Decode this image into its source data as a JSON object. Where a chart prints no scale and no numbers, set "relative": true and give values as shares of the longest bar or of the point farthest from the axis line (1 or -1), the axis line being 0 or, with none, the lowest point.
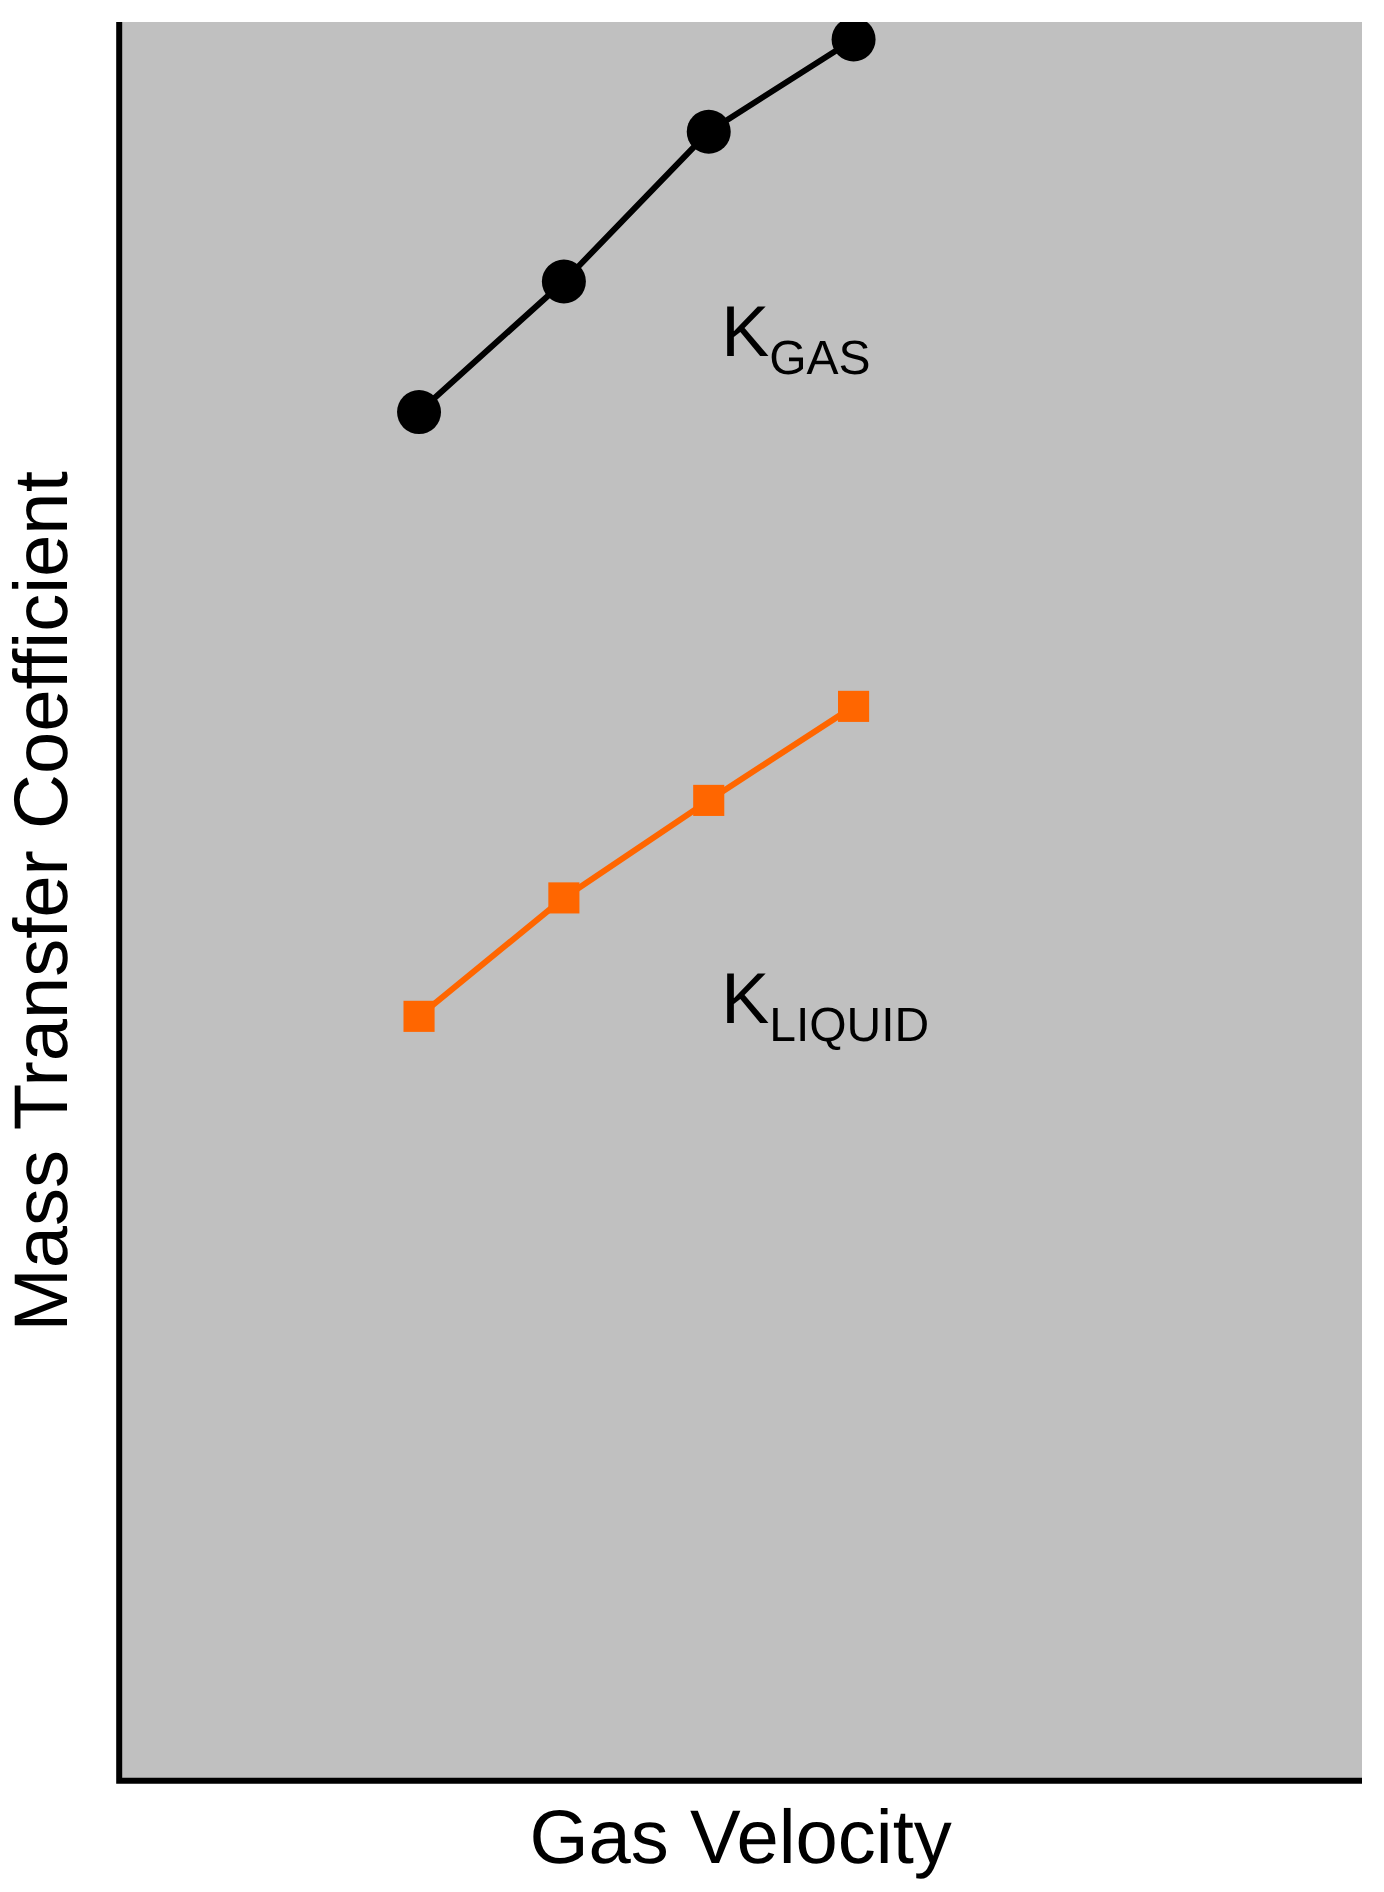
{
  "chart_data": {
    "type": "line",
    "relative": true,
    "xlabel": "Gas Velocity",
    "ylabel": "Mass Transfer Coefficient",
    "categories": [
      null,
      null,
      null,
      null
    ],
    "tick_labels": false,
    "grid": false,
    "legend": false,
    "series": [
      {
        "name": "K$_{GAS}$",
        "color": "#000000",
        "marker": "circle",
        "values": [
          0.786,
          0.861,
          0.947,
          1
        ]
      },
      {
        "name": "K$_{LIQUID}$",
        "color": "#ff6600",
        "marker": "square",
        "values": [
          0.439,
          0.507,
          0.563,
          0.617
        ]
      }
    ]
  }
}
